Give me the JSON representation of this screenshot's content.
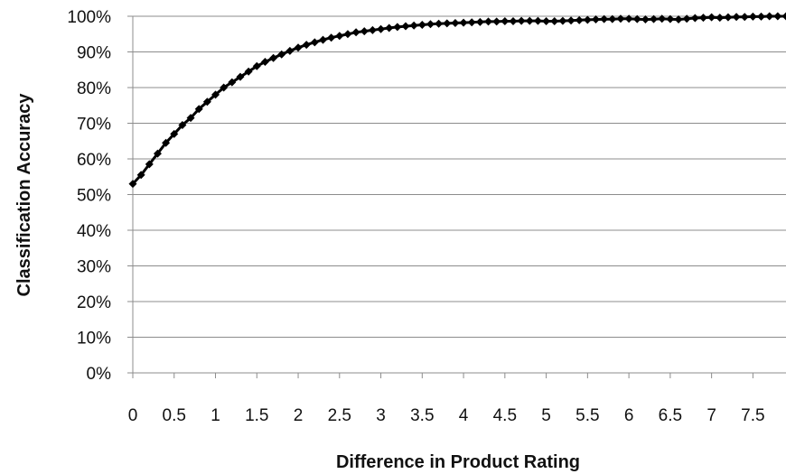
{
  "chart_data": {
    "type": "line",
    "xlabel": "Difference in Product Rating",
    "ylabel": "Classification Accuracy",
    "xlim": [
      0,
      7.9
    ],
    "ylim": [
      0,
      1
    ],
    "x_ticks": [
      0,
      0.5,
      1,
      1.5,
      2,
      2.5,
      3,
      3.5,
      4,
      4.5,
      5,
      5.5,
      6,
      6.5,
      7,
      7.5
    ],
    "x_tick_labels": [
      "0",
      "0.5",
      "1",
      "1.5",
      "2",
      "2.5",
      "3",
      "3.5",
      "4",
      "4.5",
      "5",
      "5.5",
      "6",
      "6.5",
      "7",
      "7.5"
    ],
    "y_ticks": [
      0,
      0.1,
      0.2,
      0.3,
      0.4,
      0.5,
      0.6,
      0.7,
      0.8,
      0.9,
      1.0
    ],
    "y_tick_labels": [
      "0%",
      "10%",
      "20%",
      "30%",
      "40%",
      "50%",
      "60%",
      "70%",
      "80%",
      "90%",
      "100%"
    ],
    "grid": true,
    "series": [
      {
        "color": "#000000",
        "marker": "diamond",
        "x": [
          0.0,
          0.1,
          0.2,
          0.3,
          0.4,
          0.5,
          0.6,
          0.7,
          0.8,
          0.9,
          1.0,
          1.1,
          1.2,
          1.3,
          1.4,
          1.5,
          1.6,
          1.7,
          1.8,
          1.9,
          2.0,
          2.1,
          2.2,
          2.3,
          2.4,
          2.5,
          2.6,
          2.7,
          2.8,
          2.9,
          3.0,
          3.1,
          3.2,
          3.3,
          3.4,
          3.5,
          3.6,
          3.7,
          3.8,
          3.9,
          4.0,
          4.1,
          4.2,
          4.3,
          4.4,
          4.5,
          4.6,
          4.7,
          4.8,
          4.9,
          5.0,
          5.1,
          5.2,
          5.3,
          5.4,
          5.5,
          5.6,
          5.7,
          5.8,
          5.9,
          6.0,
          6.1,
          6.2,
          6.3,
          6.4,
          6.5,
          6.6,
          6.7,
          6.8,
          6.9,
          7.0,
          7.1,
          7.2,
          7.3,
          7.4,
          7.5,
          7.6,
          7.7,
          7.8,
          7.9
        ],
        "values": [
          0.53,
          0.555,
          0.585,
          0.615,
          0.645,
          0.67,
          0.695,
          0.715,
          0.74,
          0.76,
          0.78,
          0.8,
          0.815,
          0.83,
          0.845,
          0.86,
          0.872,
          0.883,
          0.893,
          0.903,
          0.912,
          0.92,
          0.927,
          0.934,
          0.94,
          0.945,
          0.95,
          0.955,
          0.958,
          0.961,
          0.964,
          0.967,
          0.97,
          0.972,
          0.974,
          0.976,
          0.978,
          0.979,
          0.98,
          0.981,
          0.982,
          0.983,
          0.984,
          0.985,
          0.985,
          0.986,
          0.986,
          0.987,
          0.987,
          0.987,
          0.986,
          0.986,
          0.987,
          0.988,
          0.989,
          0.99,
          0.991,
          0.992,
          0.992,
          0.993,
          0.993,
          0.992,
          0.991,
          0.992,
          0.993,
          0.992,
          0.991,
          0.993,
          0.995,
          0.996,
          0.997,
          0.996,
          0.997,
          0.998,
          0.998,
          0.999,
          0.999,
          1.0,
          1.0,
          1.0
        ]
      }
    ]
  }
}
